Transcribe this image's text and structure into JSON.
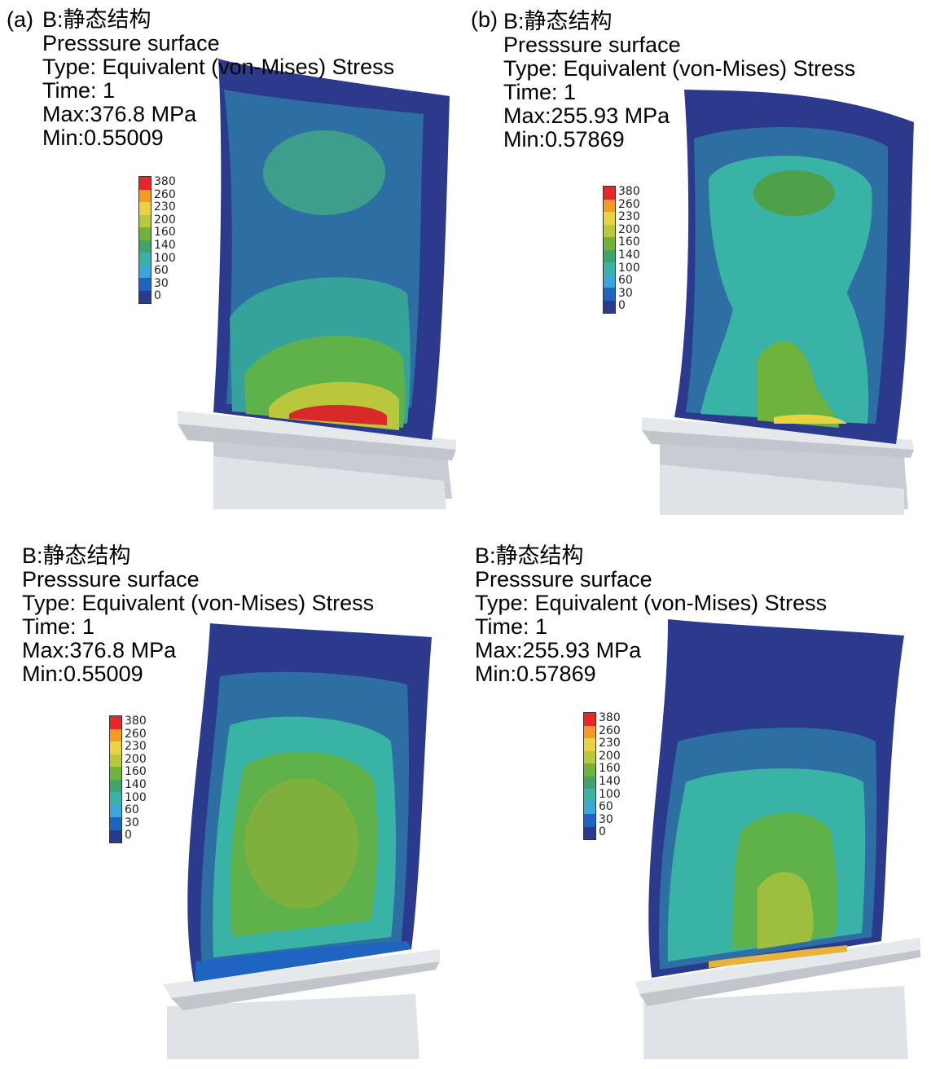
{
  "legend": {
    "labels": [
      "380",
      "260",
      "230",
      "200",
      "160",
      "140",
      "100",
      "60",
      "30",
      "0"
    ],
    "colors": [
      "#e8262a",
      "#f59a25",
      "#e9d43f",
      "#b9c93a",
      "#6fb23d",
      "#3fa36b",
      "#38b3a6",
      "#3aa6d9",
      "#1f64c0",
      "#2a3a8e"
    ]
  },
  "panels": [
    {
      "label": "(a)",
      "analysis": "B:静态结构",
      "surface": "Presssure surface",
      "type": "Type: Equivalent (von-Mises) Stress",
      "time": "Time: 1",
      "max": "Max:376.8 MPa",
      "min": "Min:0.55009"
    },
    {
      "label": "(b)",
      "analysis": "B:静态结构",
      "surface": "Presssure surface",
      "type": "Type: Equivalent (von-Mises) Stress",
      "time": "Time: 1",
      "max": "Max:255.93 MPa",
      "min": "Min:0.57869"
    },
    {
      "label": "",
      "analysis": "B:静态结构",
      "surface": "Presssure surface",
      "type": "Type: Equivalent (von-Mises) Stress",
      "time": "Time: 1",
      "max": "Max:376.8 MPa",
      "min": "Min:0.55009"
    },
    {
      "label": "",
      "analysis": "B:静态结构",
      "surface": "Presssure surface",
      "type": "Type: Equivalent (von-Mises) Stress",
      "time": "Time: 1",
      "max": "Max:255.93 MPa",
      "min": "Min:0.57869"
    }
  ]
}
